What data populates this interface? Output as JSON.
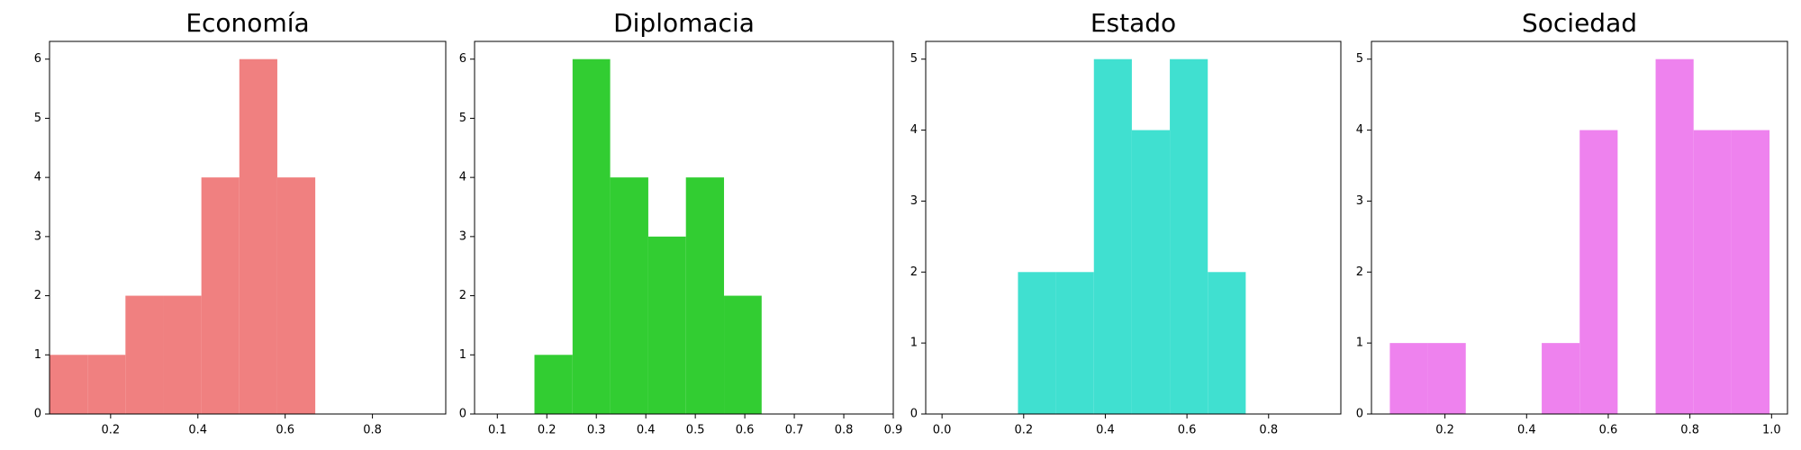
{
  "chart_data": [
    {
      "type": "histogram",
      "title": "Economía",
      "color": "#f08080",
      "bins": [
        0.06,
        0.147,
        0.234,
        0.321,
        0.408,
        0.495,
        0.582,
        0.669,
        0.756,
        0.843,
        0.93
      ],
      "values": [
        1,
        1,
        2,
        2,
        4,
        6,
        4,
        0,
        0,
        0
      ],
      "xlim": [
        0.06,
        0.968
      ],
      "xticks": [
        0.2,
        0.4,
        0.6,
        0.8
      ],
      "ylim": [
        0,
        6.3
      ],
      "yticks": [
        0,
        1,
        2,
        3,
        4,
        5,
        6
      ]
    },
    {
      "type": "histogram",
      "title": "Diplomacia",
      "color": "#32cd32",
      "bins": [
        0.175,
        0.252,
        0.328,
        0.405,
        0.481,
        0.558,
        0.634
      ],
      "values": [
        1,
        6,
        4,
        3,
        4,
        2
      ],
      "xlim": [
        0.054,
        0.9
      ],
      "xticks": [
        0.1,
        0.2,
        0.3,
        0.4,
        0.5,
        0.6,
        0.7,
        0.8,
        0.9
      ],
      "ylim": [
        0,
        6.3
      ],
      "yticks": [
        0,
        1,
        2,
        3,
        4,
        5,
        6
      ]
    },
    {
      "type": "histogram",
      "title": "Estado",
      "color": "#40e0d0",
      "bins": [
        0.186,
        0.279,
        0.372,
        0.465,
        0.558,
        0.651,
        0.744
      ],
      "values": [
        2,
        2,
        5,
        4,
        5,
        2
      ],
      "xlim": [
        -0.04,
        0.977
      ],
      "xticks": [
        {
          "value": 0,
          "label": "0.0"
        },
        0.2,
        0.4,
        0.6,
        0.8
      ],
      "ylim": [
        0,
        5.25
      ],
      "yticks": [
        0,
        1,
        2,
        3,
        4,
        5
      ]
    },
    {
      "type": "histogram",
      "title": "Sociedad",
      "color": "#ee82ee",
      "bins": [
        0.065,
        0.158,
        0.251,
        0.344,
        0.437,
        0.53,
        0.623,
        0.716,
        0.809,
        0.902,
        0.995
      ],
      "values": [
        1,
        1,
        0,
        0,
        1,
        4,
        0,
        5,
        4,
        4
      ],
      "xlim": [
        0.02,
        1.039
      ],
      "xticks": [
        0.2,
        0.4,
        0.6,
        0.8,
        {
          "value": 1,
          "label": "1.0"
        }
      ],
      "ylim": [
        0,
        5.25
      ],
      "yticks": [
        0,
        1,
        2,
        3,
        4,
        5
      ]
    }
  ]
}
